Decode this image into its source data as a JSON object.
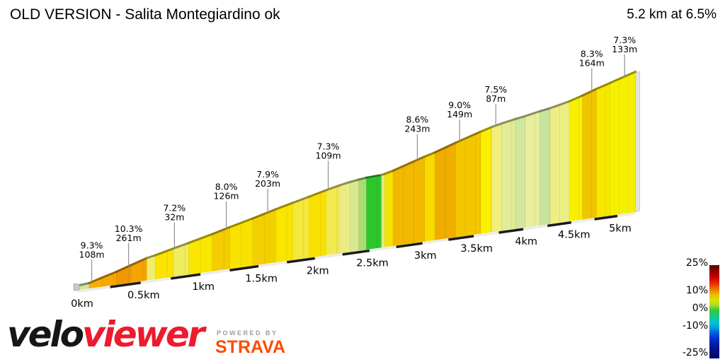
{
  "header": {
    "title": "OLD VERSION - Salita Montegiardino ok",
    "stats": "5.2 km at 6.5%"
  },
  "chart_data": {
    "type": "area",
    "title": "OLD VERSION - Salita Montegiardino ok",
    "summary": "5.2 km at 6.5%",
    "total_km": 5.2,
    "avg_gradient_pct": 6.5,
    "x_axis": {
      "unit": "km",
      "ticks": [
        {
          "v": 0.0,
          "label": "0km"
        },
        {
          "v": 0.5,
          "label": "0.5km"
        },
        {
          "v": 1.0,
          "label": "1km"
        },
        {
          "v": 1.5,
          "label": "1.5km"
        },
        {
          "v": 2.0,
          "label": "2km"
        },
        {
          "v": 2.5,
          "label": "2.5km"
        },
        {
          "v": 3.0,
          "label": "3km"
        },
        {
          "v": 3.5,
          "label": "3.5km"
        },
        {
          "v": 4.0,
          "label": "4km"
        },
        {
          "v": 4.5,
          "label": "4.5km"
        },
        {
          "v": 5.0,
          "label": "5km"
        }
      ]
    },
    "gradient_labels": [
      {
        "km": 0.1,
        "gradient": "9.3%",
        "length": "108m"
      },
      {
        "km": 0.4,
        "gradient": "10.3%",
        "length": "261m"
      },
      {
        "km": 0.78,
        "gradient": "7.2%",
        "length": "32m"
      },
      {
        "km": 1.22,
        "gradient": "8.0%",
        "length": "126m"
      },
      {
        "km": 1.58,
        "gradient": "7.9%",
        "length": "203m"
      },
      {
        "km": 2.12,
        "gradient": "7.3%",
        "length": "109m"
      },
      {
        "km": 2.95,
        "gradient": "8.6%",
        "length": "243m"
      },
      {
        "km": 3.36,
        "gradient": "9.0%",
        "length": "149m"
      },
      {
        "km": 3.72,
        "gradient": "7.5%",
        "length": "87m"
      },
      {
        "km": 4.72,
        "gradient": "8.3%",
        "length": "164m"
      },
      {
        "km": 5.08,
        "gradient": "7.3%",
        "length": "133m"
      }
    ],
    "segments": [
      {
        "from": 0.0,
        "to": 0.08,
        "grad": 3.0,
        "color": "#cde89a"
      },
      {
        "from": 0.08,
        "to": 0.18,
        "grad": 9.3,
        "color": "#f7b000"
      },
      {
        "from": 0.18,
        "to": 0.3,
        "grad": 8.8,
        "color": "#f6a900"
      },
      {
        "from": 0.3,
        "to": 0.42,
        "grad": 10.3,
        "color": "#f39800"
      },
      {
        "from": 0.42,
        "to": 0.55,
        "grad": 10.0,
        "color": "#f5a300"
      },
      {
        "from": 0.55,
        "to": 0.62,
        "grad": 6.0,
        "color": "#f0ef6a"
      },
      {
        "from": 0.62,
        "to": 0.77,
        "grad": 7.5,
        "color": "#fae400"
      },
      {
        "from": 0.77,
        "to": 0.9,
        "grad": 7.2,
        "color": "#eeec5f"
      },
      {
        "from": 0.9,
        "to": 1.1,
        "grad": 7.4,
        "color": "#fbe600"
      },
      {
        "from": 1.1,
        "to": 1.25,
        "grad": 8.0,
        "color": "#f4cc00"
      },
      {
        "from": 1.25,
        "to": 1.45,
        "grad": 7.4,
        "color": "#fae200"
      },
      {
        "from": 1.45,
        "to": 1.65,
        "grad": 7.9,
        "color": "#f2d000"
      },
      {
        "from": 1.65,
        "to": 1.8,
        "grad": 7.2,
        "color": "#f9e500"
      },
      {
        "from": 1.8,
        "to": 1.95,
        "grad": 7.0,
        "color": "#f6e83a"
      },
      {
        "from": 1.95,
        "to": 2.1,
        "grad": 7.3,
        "color": "#f8e000"
      },
      {
        "from": 2.1,
        "to": 2.22,
        "grad": 6.5,
        "color": "#f3ea50"
      },
      {
        "from": 2.22,
        "to": 2.32,
        "grad": 5.2,
        "color": "#e9ec85"
      },
      {
        "from": 2.32,
        "to": 2.4,
        "grad": 4.0,
        "color": "#d9e890"
      },
      {
        "from": 2.4,
        "to": 2.47,
        "grad": 3.2,
        "color": "#abdc72"
      },
      {
        "from": 2.47,
        "to": 2.61,
        "grad": 1.2,
        "color": "#2dc62d"
      },
      {
        "from": 2.61,
        "to": 2.64,
        "grad": 5.0,
        "color": "#e5ec88"
      },
      {
        "from": 2.64,
        "to": 2.72,
        "grad": 7.0,
        "color": "#f6e200"
      },
      {
        "from": 2.72,
        "to": 3.02,
        "grad": 8.6,
        "color": "#f2b900"
      },
      {
        "from": 3.02,
        "to": 3.12,
        "grad": 7.4,
        "color": "#f6da00"
      },
      {
        "from": 3.12,
        "to": 3.32,
        "grad": 9.0,
        "color": "#efad00"
      },
      {
        "from": 3.32,
        "to": 3.57,
        "grad": 8.2,
        "color": "#f3c600"
      },
      {
        "from": 3.57,
        "to": 3.68,
        "grad": 7.5,
        "color": "#fbef00"
      },
      {
        "from": 3.68,
        "to": 3.78,
        "grad": 5.8,
        "color": "#f0ee7c"
      },
      {
        "from": 3.78,
        "to": 3.92,
        "grad": 4.8,
        "color": "#e2ec96"
      },
      {
        "from": 3.92,
        "to": 4.02,
        "grad": 4.0,
        "color": "#cfe79e"
      },
      {
        "from": 4.02,
        "to": 4.17,
        "grad": 5.0,
        "color": "#e9ee9c"
      },
      {
        "from": 4.17,
        "to": 4.28,
        "grad": 4.2,
        "color": "#c8e49c"
      },
      {
        "from": 4.28,
        "to": 4.48,
        "grad": 5.5,
        "color": "#edef85"
      },
      {
        "from": 4.48,
        "to": 4.62,
        "grad": 7.5,
        "color": "#f8f000"
      },
      {
        "from": 4.62,
        "to": 4.77,
        "grad": 8.3,
        "color": "#f0c400"
      },
      {
        "from": 4.77,
        "to": 4.92,
        "grad": 7.3,
        "color": "#f8e800"
      },
      {
        "from": 4.92,
        "to": 5.2,
        "grad": 7.3,
        "color": "#f5f000"
      }
    ],
    "legend": {
      "ticks": [
        "25%",
        "10%",
        "0%",
        "-10%",
        "-25%"
      ],
      "range_pct": [
        -25,
        25
      ],
      "colors_top_to_bottom": [
        "#5a0000",
        "#c80000",
        "#f07800",
        "#e8c800",
        "#38c838",
        "#00c8c8",
        "#0028c8",
        "#000a64"
      ]
    }
  },
  "footer": {
    "brand": {
      "velo": "velo",
      "viewer": "viewer"
    },
    "powered_by": "POWERED BY",
    "strava": "STRAVA"
  }
}
